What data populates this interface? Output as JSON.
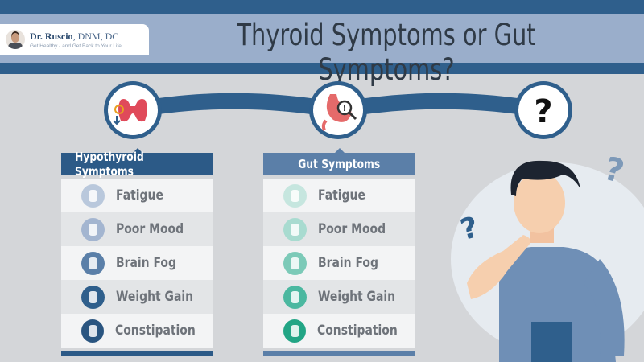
{
  "header": {
    "logo": {
      "name": "Dr. Ruscio",
      "credentials": ", DNM, DC",
      "tagline": "Get Healthy - and Get Back to Your Life"
    },
    "title": "Thyroid Symptoms or Gut Symptoms?"
  },
  "connector": {
    "icons": [
      "thyroid-icon",
      "stomach-magnifier-icon",
      "question-mark-icon"
    ],
    "question_mark": "?"
  },
  "colors": {
    "dark_blue": "#2f5f8c",
    "light_blue": "#9aaecb",
    "gut_header": "#5b7fa8",
    "teal": "#22a585"
  },
  "panels": [
    {
      "title": "Hypothyroid Symptoms",
      "header_color": "#2c5a87",
      "items": [
        {
          "label": "Fatigue",
          "icon": "fatigue-icon",
          "color": "#b9c8dc"
        },
        {
          "label": "Poor Mood",
          "icon": "poor-mood-icon",
          "color": "#a3b5d0"
        },
        {
          "label": "Brain Fog",
          "icon": "brain-fog-icon",
          "color": "#5a7fa8"
        },
        {
          "label": "Weight Gain",
          "icon": "weight-gain-icon",
          "color": "#2f5f8c"
        },
        {
          "label": "Constipation",
          "icon": "constipation-icon",
          "color": "#2a5580"
        }
      ]
    },
    {
      "title": "Gut Symptoms",
      "header_color": "#5b7fa8",
      "items": [
        {
          "label": "Fatigue",
          "icon": "fatigue-icon",
          "color": "#c6e6df"
        },
        {
          "label": "Poor Mood",
          "icon": "poor-mood-icon",
          "color": "#a8dbd0"
        },
        {
          "label": "Brain Fog",
          "icon": "brain-fog-icon",
          "color": "#7ccab8"
        },
        {
          "label": "Weight Gain",
          "icon": "weight-gain-icon",
          "color": "#4bb8a0"
        },
        {
          "label": "Constipation",
          "icon": "constipation-icon",
          "color": "#22a585"
        }
      ]
    }
  ],
  "illustration": {
    "name": "thinking-man",
    "question_marks": [
      "?",
      "?"
    ]
  }
}
